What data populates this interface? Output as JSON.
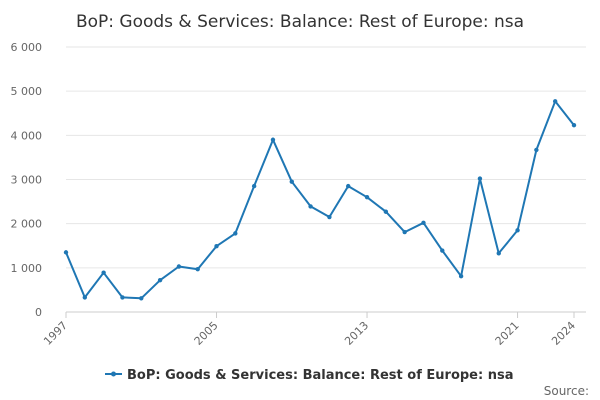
{
  "chart_data": {
    "type": "line",
    "title": "BoP: Goods & Services: Balance: Rest of Europe: nsa",
    "xlabel": "",
    "ylabel": "",
    "x": [
      1997,
      1998,
      1999,
      2000,
      2001,
      2002,
      2003,
      2004,
      2005,
      2006,
      2007,
      2008,
      2009,
      2010,
      2011,
      2012,
      2013,
      2014,
      2015,
      2016,
      2017,
      2018,
      2019,
      2020,
      2021,
      2022,
      2023,
      2024
    ],
    "x_tick_labels": [
      "1997",
      "2005",
      "2013",
      "2021",
      "2024"
    ],
    "ylim": [
      0,
      6000
    ],
    "y_ticks": [
      0,
      1000,
      2000,
      3000,
      4000,
      5000,
      6000
    ],
    "y_tick_labels": [
      "0",
      "1 000",
      "2 000",
      "3 000",
      "4 000",
      "5 000",
      "6 000"
    ],
    "grid": "horizontal",
    "legend_position": "bottom",
    "series": [
      {
        "name": "BoP: Goods & Services: Balance: Rest of Europe: nsa",
        "color": "#1f77b4",
        "values": [
          1350,
          330,
          890,
          330,
          310,
          720,
          1030,
          970,
          1490,
          1780,
          2850,
          3900,
          2950,
          2390,
          2150,
          2850,
          2600,
          2270,
          1810,
          2020,
          1390,
          810,
          3020,
          1330,
          1850,
          3670,
          4770,
          4230
        ]
      }
    ],
    "source_label": "Source:"
  }
}
